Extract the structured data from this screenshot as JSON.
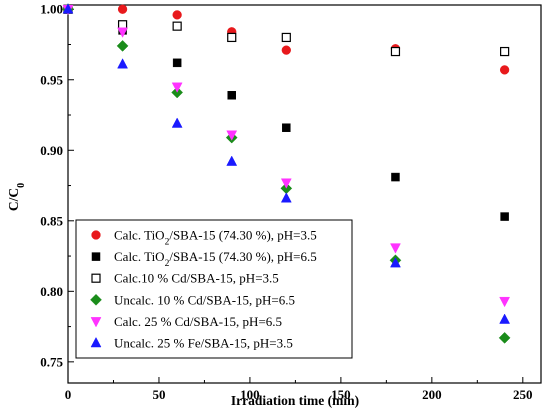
{
  "chart_data": {
    "type": "scatter",
    "xlabel": "Irradiation time (min)",
    "ylabel": {
      "main": "C/C",
      "sub": "0"
    },
    "xlim": [
      0,
      260
    ],
    "ylim": [
      0.735,
      1.003
    ],
    "xticks": [
      0,
      50,
      100,
      150,
      200,
      250
    ],
    "yticks": [
      0.75,
      0.8,
      0.85,
      0.9,
      0.95,
      1.0
    ],
    "xtick_labels": [
      "0",
      "50",
      "100",
      "150",
      "200",
      "250"
    ],
    "ytick_labels": [
      "0.75",
      "0.80",
      "0.85",
      "0.90",
      "0.95",
      "1.00"
    ],
    "legend_position": "bottom-left",
    "series": [
      {
        "name": "Calc. TiO2/SBA-15 (74.30 %), pH=3.5",
        "label_parts": [
          "Calc. TiO",
          "2",
          "/SBA-15 (74.30 %), pH=3.5"
        ],
        "marker": "circle",
        "color": "#e8191c",
        "filled": true,
        "points": [
          [
            0,
            1.0
          ],
          [
            30,
            1.0
          ],
          [
            60,
            0.996
          ],
          [
            90,
            0.984
          ],
          [
            120,
            0.971
          ],
          [
            180,
            0.972
          ],
          [
            240,
            0.957
          ]
        ]
      },
      {
        "name": "Calc. TiO2/SBA-15 (74.30 %), pH=6.5",
        "label_parts": [
          "Calc. TiO",
          "2",
          "/SBA-15 (74.30 %), pH=6.5"
        ],
        "marker": "square",
        "color": "#000000",
        "filled": true,
        "points": [
          [
            0,
            1.0
          ],
          [
            30,
            0.985
          ],
          [
            60,
            0.962
          ],
          [
            90,
            0.939
          ],
          [
            120,
            0.916
          ],
          [
            180,
            0.881
          ],
          [
            240,
            0.853
          ]
        ]
      },
      {
        "name": "Calc.10 % Cd/SBA-15, pH=3.5",
        "label_parts": [
          "Calc.10 % Cd/SBA-15, pH=3.5"
        ],
        "marker": "square",
        "color": "#000000",
        "filled": false,
        "points": [
          [
            0,
            1.0
          ],
          [
            30,
            0.989
          ],
          [
            60,
            0.988
          ],
          [
            90,
            0.98
          ],
          [
            120,
            0.98
          ],
          [
            180,
            0.97
          ],
          [
            240,
            0.97
          ]
        ]
      },
      {
        "name": "Uncalc. 10 % Cd/SBA-15, pH=6.5",
        "label_parts": [
          "Uncalc. 10 % Cd/SBA-15, pH=6.5"
        ],
        "marker": "diamond",
        "color": "#1a8c1a",
        "filled": true,
        "points": [
          [
            0,
            1.0
          ],
          [
            30,
            0.974
          ],
          [
            60,
            0.941
          ],
          [
            90,
            0.909
          ],
          [
            120,
            0.873
          ],
          [
            180,
            0.822
          ],
          [
            240,
            0.767
          ]
        ]
      },
      {
        "name": "Calc. 25 % Cd/SBA-15, pH=6.5",
        "label_parts": [
          "Calc. 25 % Cd/SBA-15, pH=6.5"
        ],
        "marker": "triangle-down",
        "color": "#ff33ff",
        "filled": true,
        "points": [
          [
            0,
            1.0
          ],
          [
            30,
            0.984
          ],
          [
            60,
            0.945
          ],
          [
            90,
            0.911
          ],
          [
            120,
            0.877
          ],
          [
            180,
            0.831
          ],
          [
            240,
            0.793
          ]
        ]
      },
      {
        "name": "Uncalc. 25 % Fe/SBA-15, pH=3.5",
        "label_parts": [
          "Uncalc. 25 % Fe/SBA-15, pH=3.5"
        ],
        "marker": "triangle-up",
        "color": "#1a1aff",
        "filled": true,
        "points": [
          [
            0,
            1.0
          ],
          [
            30,
            0.961
          ],
          [
            60,
            0.919
          ],
          [
            90,
            0.892
          ],
          [
            120,
            0.866
          ],
          [
            180,
            0.82
          ],
          [
            240,
            0.78
          ]
        ]
      }
    ]
  }
}
